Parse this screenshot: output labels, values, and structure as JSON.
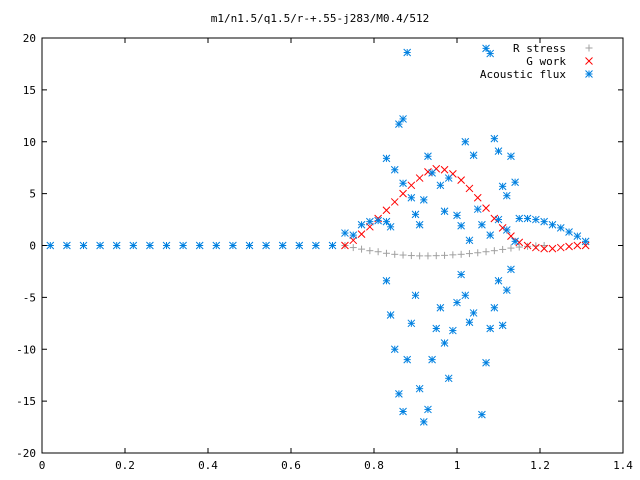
{
  "chart_data": {
    "type": "scatter",
    "title": "m1/n1.5/q1.5/r-+.55-j283/M0.4/512",
    "xlabel": "",
    "ylabel": "",
    "xlim": [
      0,
      1.4
    ],
    "ylim": [
      -20,
      20
    ],
    "x_ticks": [
      0,
      0.2,
      0.4,
      0.6,
      0.8,
      1,
      1.2,
      1.4
    ],
    "x_tick_labels": [
      "0",
      "0.2",
      "0.4",
      "0.6",
      "0.8",
      "1",
      "1.2",
      "1.4"
    ],
    "y_ticks": [
      -20,
      -15,
      -10,
      -5,
      0,
      5,
      10,
      15,
      20
    ],
    "y_tick_labels": [
      "-20",
      "-15",
      "-10",
      "-5",
      "0",
      "5",
      "10",
      "15",
      "20"
    ],
    "grid": false,
    "legend_position": "top-right",
    "series": [
      {
        "name": "R stress",
        "marker": "plus",
        "color": "#a0a0a0",
        "points": [
          [
            0.73,
            0.0
          ],
          [
            0.75,
            -0.2
          ],
          [
            0.77,
            -0.35
          ],
          [
            0.79,
            -0.5
          ],
          [
            0.81,
            -0.6
          ],
          [
            0.83,
            -0.75
          ],
          [
            0.85,
            -0.85
          ],
          [
            0.87,
            -0.92
          ],
          [
            0.89,
            -0.97
          ],
          [
            0.91,
            -1.0
          ],
          [
            0.93,
            -1.0
          ],
          [
            0.95,
            -0.98
          ],
          [
            0.97,
            -0.95
          ],
          [
            0.99,
            -0.9
          ],
          [
            1.01,
            -0.85
          ],
          [
            1.03,
            -0.78
          ],
          [
            1.05,
            -0.7
          ],
          [
            1.07,
            -0.6
          ],
          [
            1.09,
            -0.5
          ],
          [
            1.11,
            -0.38
          ],
          [
            1.13,
            -0.25
          ],
          [
            1.15,
            -0.15
          ],
          [
            1.17,
            -0.08
          ],
          [
            1.19,
            -0.03
          ],
          [
            1.21,
            0.0
          ]
        ]
      },
      {
        "name": "G work",
        "marker": "cross",
        "color": "#ff0000",
        "points": [
          [
            0.73,
            0.0
          ],
          [
            0.75,
            0.5
          ],
          [
            0.77,
            1.1
          ],
          [
            0.79,
            1.8
          ],
          [
            0.81,
            2.6
          ],
          [
            0.83,
            3.4
          ],
          [
            0.85,
            4.2
          ],
          [
            0.87,
            5.0
          ],
          [
            0.89,
            5.8
          ],
          [
            0.91,
            6.5
          ],
          [
            0.93,
            7.1
          ],
          [
            0.95,
            7.4
          ],
          [
            0.97,
            7.3
          ],
          [
            0.99,
            6.9
          ],
          [
            1.01,
            6.3
          ],
          [
            1.03,
            5.5
          ],
          [
            1.05,
            4.6
          ],
          [
            1.07,
            3.6
          ],
          [
            1.09,
            2.6
          ],
          [
            1.11,
            1.7
          ],
          [
            1.13,
            0.9
          ],
          [
            1.15,
            0.3
          ],
          [
            1.17,
            0.0
          ],
          [
            1.19,
            -0.2
          ],
          [
            1.21,
            -0.3
          ],
          [
            1.23,
            -0.3
          ],
          [
            1.25,
            -0.2
          ],
          [
            1.27,
            -0.1
          ],
          [
            1.29,
            0.0
          ],
          [
            1.31,
            0.0
          ]
        ]
      },
      {
        "name": "Acoustic flux",
        "marker": "star",
        "color": "#0080e0",
        "points": [
          [
            0.02,
            0.0
          ],
          [
            0.06,
            0.0
          ],
          [
            0.1,
            0.0
          ],
          [
            0.14,
            0.0
          ],
          [
            0.18,
            0.0
          ],
          [
            0.22,
            0.0
          ],
          [
            0.26,
            0.0
          ],
          [
            0.3,
            0.0
          ],
          [
            0.34,
            0.0
          ],
          [
            0.38,
            0.0
          ],
          [
            0.42,
            0.0
          ],
          [
            0.46,
            0.0
          ],
          [
            0.5,
            0.0
          ],
          [
            0.54,
            0.0
          ],
          [
            0.58,
            0.0
          ],
          [
            0.62,
            0.0
          ],
          [
            0.66,
            0.0
          ],
          [
            0.7,
            0.0
          ],
          [
            0.73,
            1.2
          ],
          [
            0.75,
            1.0
          ],
          [
            0.77,
            2.0
          ],
          [
            0.79,
            2.3
          ],
          [
            0.81,
            2.4
          ],
          [
            0.83,
            2.3
          ],
          [
            0.84,
            1.8
          ],
          [
            0.83,
            8.4
          ],
          [
            0.86,
            11.7
          ],
          [
            0.87,
            12.2
          ],
          [
            0.88,
            18.6
          ],
          [
            0.85,
            7.3
          ],
          [
            0.87,
            6.0
          ],
          [
            0.89,
            4.6
          ],
          [
            0.9,
            3.0
          ],
          [
            0.91,
            2.0
          ],
          [
            0.92,
            4.4
          ],
          [
            0.93,
            8.6
          ],
          [
            0.94,
            7.0
          ],
          [
            0.96,
            5.8
          ],
          [
            0.97,
            3.3
          ],
          [
            0.98,
            6.5
          ],
          [
            0.83,
            -3.4
          ],
          [
            0.84,
            -6.7
          ],
          [
            0.85,
            -10.0
          ],
          [
            0.86,
            -14.3
          ],
          [
            0.87,
            -16.0
          ],
          [
            0.88,
            -11.0
          ],
          [
            0.89,
            -7.5
          ],
          [
            0.9,
            -4.8
          ],
          [
            0.91,
            -13.8
          ],
          [
            0.92,
            -17.0
          ],
          [
            0.93,
            -15.8
          ],
          [
            0.94,
            -11.0
          ],
          [
            0.95,
            -8.0
          ],
          [
            0.96,
            -6.0
          ],
          [
            0.97,
            -9.4
          ],
          [
            0.98,
            -12.8
          ],
          [
            0.99,
            -8.2
          ],
          [
            1.0,
            -5.5
          ],
          [
            1.01,
            -2.8
          ],
          [
            1.02,
            -4.8
          ],
          [
            1.03,
            -7.4
          ],
          [
            1.04,
            -6.5
          ],
          [
            1.06,
            -16.3
          ],
          [
            1.07,
            -11.3
          ],
          [
            1.08,
            -8.0
          ],
          [
            1.09,
            -6.0
          ],
          [
            1.1,
            -3.4
          ],
          [
            1.11,
            -7.7
          ],
          [
            1.12,
            -4.3
          ],
          [
            1.13,
            -2.3
          ],
          [
            1.02,
            10.0
          ],
          [
            1.04,
            8.7
          ],
          [
            1.07,
            19.0
          ],
          [
            1.08,
            18.5
          ],
          [
            1.09,
            10.3
          ],
          [
            1.1,
            9.1
          ],
          [
            1.11,
            5.7
          ],
          [
            1.12,
            4.8
          ],
          [
            1.13,
            8.6
          ],
          [
            1.14,
            6.1
          ],
          [
            1.0,
            2.9
          ],
          [
            1.01,
            1.9
          ],
          [
            1.03,
            0.5
          ],
          [
            1.05,
            3.5
          ],
          [
            1.06,
            2.0
          ],
          [
            1.08,
            1.0
          ],
          [
            1.1,
            2.5
          ],
          [
            1.12,
            1.5
          ],
          [
            1.14,
            0.4
          ],
          [
            1.15,
            2.6
          ],
          [
            1.17,
            2.6
          ],
          [
            1.19,
            2.5
          ],
          [
            1.21,
            2.3
          ],
          [
            1.23,
            2.0
          ],
          [
            1.25,
            1.7
          ],
          [
            1.27,
            1.3
          ],
          [
            1.29,
            0.9
          ],
          [
            1.31,
            0.4
          ]
        ]
      }
    ]
  }
}
